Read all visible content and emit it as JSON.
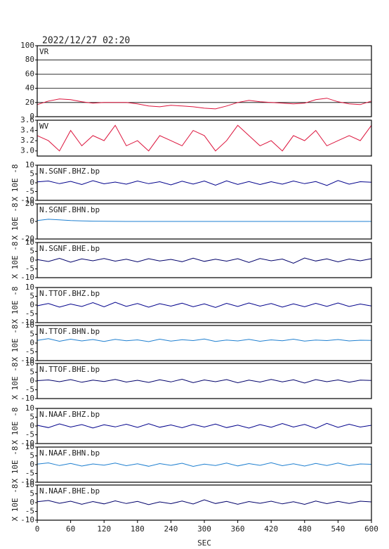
{
  "chart_data": [
    {
      "type": "line",
      "title": "2022/12/27 02:20",
      "x": [
        0,
        20,
        40,
        60,
        80,
        100,
        120,
        140,
        160,
        180,
        200,
        220,
        240,
        260,
        280,
        300,
        320,
        340,
        360,
        380,
        400,
        420,
        440,
        460,
        480,
        500,
        520,
        540,
        560,
        580,
        600
      ],
      "xlim": [
        0,
        600
      ],
      "ylim": [
        0,
        100
      ],
      "yticks": [
        0,
        20,
        40,
        60,
        80,
        100
      ],
      "grid": true,
      "series": [
        {
          "name": "VR",
          "color": "#dc143c",
          "values": [
            17,
            22,
            25,
            24,
            21,
            19,
            20,
            20,
            20,
            18,
            15,
            14,
            16,
            15,
            14,
            12,
            11,
            15,
            20,
            23,
            21,
            20,
            19,
            18,
            19,
            24,
            26,
            21,
            18,
            17,
            22
          ]
        }
      ]
    },
    {
      "type": "line",
      "x": [
        0,
        20,
        40,
        60,
        80,
        100,
        120,
        140,
        160,
        180,
        200,
        220,
        240,
        260,
        280,
        300,
        320,
        340,
        360,
        380,
        400,
        420,
        440,
        460,
        480,
        500,
        520,
        540,
        560,
        580,
        600
      ],
      "xlim": [
        0,
        600
      ],
      "ylim": [
        2.9,
        3.6
      ],
      "yticks": [
        {
          "value": 3,
          "label": "3.0"
        },
        3.2,
        3.4,
        3.6
      ],
      "grid": false,
      "series": [
        {
          "name": "WV",
          "color": "#dc143c",
          "values": [
            3.3,
            3.2,
            3.0,
            3.4,
            3.1,
            3.3,
            3.2,
            3.5,
            3.1,
            3.2,
            3.0,
            3.3,
            3.2,
            3.1,
            3.4,
            3.3,
            3.0,
            3.2,
            3.5,
            3.3,
            3.1,
            3.2,
            3.0,
            3.3,
            3.2,
            3.4,
            3.1,
            3.2,
            3.3,
            3.2,
            3.5
          ]
        }
      ]
    },
    {
      "type": "line",
      "ylabel": "X 10E -8",
      "x": [
        0,
        20,
        40,
        60,
        80,
        100,
        120,
        140,
        160,
        180,
        200,
        220,
        240,
        260,
        280,
        300,
        320,
        340,
        360,
        380,
        400,
        420,
        440,
        460,
        480,
        500,
        520,
        540,
        560,
        580,
        600
      ],
      "xlim": [
        0,
        600
      ],
      "ylim": [
        -10,
        10
      ],
      "yticks": [
        -10,
        -5,
        0,
        5,
        10
      ],
      "series": [
        {
          "name": "N.SGNF.BHZ.bp",
          "color": "#00008b",
          "values": [
            0.5,
            1,
            -0.5,
            0.8,
            -1,
            1.2,
            -0.6,
            0.4,
            -0.8,
            1,
            -0.5,
            0.6,
            -1.2,
            0.9,
            -0.7,
            1,
            -1.4,
            1.1,
            -0.9,
            0.7,
            -1,
            0.6,
            -0.8,
            1,
            -0.5,
            0.7,
            -1.5,
            1.3,
            -0.8,
            0.6,
            0.3
          ]
        }
      ]
    },
    {
      "type": "line",
      "ylabel": "X 10E -8",
      "x": [
        0,
        20,
        40,
        60,
        80,
        100,
        120,
        140,
        160,
        180,
        200,
        220,
        240,
        260,
        280,
        300,
        320,
        340,
        360,
        380,
        400,
        420,
        440,
        460,
        480,
        500,
        520,
        540,
        560,
        580,
        600
      ],
      "xlim": [
        0,
        600
      ],
      "ylim": [
        -20,
        20
      ],
      "yticks": [
        -20,
        0,
        20
      ],
      "series": [
        {
          "name": "N.SGNF.BHN.bp",
          "color": "#1e7fd0",
          "values": [
            1,
            2.5,
            1.8,
            1,
            0.6,
            0.3,
            0.2,
            0.1,
            0,
            0,
            0,
            0,
            0,
            0,
            0,
            0,
            0,
            0,
            0,
            0,
            0,
            0,
            0,
            0,
            0,
            0,
            0,
            0,
            0,
            0,
            0
          ]
        }
      ]
    },
    {
      "type": "line",
      "ylabel": "X 10E -8",
      "x": [
        0,
        20,
        40,
        60,
        80,
        100,
        120,
        140,
        160,
        180,
        200,
        220,
        240,
        260,
        280,
        300,
        320,
        340,
        360,
        380,
        400,
        420,
        440,
        460,
        480,
        500,
        520,
        540,
        560,
        580,
        600
      ],
      "xlim": [
        0,
        600
      ],
      "ylim": [
        -10,
        10
      ],
      "yticks": [
        -10,
        -5,
        0,
        5,
        10
      ],
      "series": [
        {
          "name": "N.SGNF.BHE.bp",
          "color": "#00006a",
          "values": [
            0.3,
            -0.8,
            1,
            -1.2,
            0.7,
            -0.4,
            0.9,
            -0.6,
            0.5,
            -1,
            0.8,
            -0.5,
            0.4,
            -0.9,
            1.1,
            -0.7,
            0.5,
            -0.6,
            0.8,
            -1.3,
            0.9,
            -0.4,
            0.6,
            -1.8,
            1.2,
            -0.5,
            0.7,
            -1,
            0.6,
            -0.4,
            0.8
          ]
        }
      ]
    },
    {
      "type": "line",
      "ylabel": "X 10E -8",
      "x": [
        0,
        20,
        40,
        60,
        80,
        100,
        120,
        140,
        160,
        180,
        200,
        220,
        240,
        260,
        280,
        300,
        320,
        340,
        360,
        380,
        400,
        420,
        440,
        460,
        480,
        500,
        520,
        540,
        560,
        580,
        600
      ],
      "xlim": [
        0,
        600
      ],
      "ylim": [
        -10,
        10
      ],
      "yticks": [
        -10,
        -5,
        0,
        5,
        10
      ],
      "series": [
        {
          "name": "N.TTOF.BHZ.bp",
          "color": "#00008b",
          "values": [
            -0.4,
            0.9,
            -1.1,
            0.6,
            -0.8,
            1.4,
            -1,
            1.6,
            -0.7,
            0.9,
            -1.2,
            0.8,
            -0.6,
            1.1,
            -0.9,
            0.7,
            -1.3,
            1,
            -0.8,
            1.2,
            -0.6,
            0.9,
            -1.1,
            0.7,
            -0.9,
            1,
            -0.7,
            1.2,
            -0.8,
            0.6,
            -0.5
          ]
        }
      ]
    },
    {
      "type": "line",
      "ylabel": "X 10E -8",
      "x": [
        0,
        20,
        40,
        60,
        80,
        100,
        120,
        140,
        160,
        180,
        200,
        220,
        240,
        260,
        280,
        300,
        320,
        340,
        360,
        380,
        400,
        420,
        440,
        460,
        480,
        500,
        520,
        540,
        560,
        580,
        600
      ],
      "xlim": [
        0,
        600
      ],
      "ylim": [
        -10,
        10
      ],
      "yticks": [
        -10,
        -5,
        0,
        5,
        10
      ],
      "series": [
        {
          "name": "N.TTOF.BHN.bp",
          "color": "#1e7fd0",
          "values": [
            1.5,
            2.5,
            1,
            2.2,
            1.2,
            2,
            0.9,
            2.1,
            1.3,
            1.8,
            0.8,
            2.2,
            1.1,
            1.9,
            1.4,
            2.3,
            0.9,
            1.7,
            1.2,
            2.1,
            1,
            1.8,
            1.3,
            2.2,
            1.1,
            1.7,
            1.4,
            2,
            1.2,
            1.6,
            1.5
          ]
        }
      ]
    },
    {
      "type": "line",
      "ylabel": "X 10E -8",
      "x": [
        0,
        20,
        40,
        60,
        80,
        100,
        120,
        140,
        160,
        180,
        200,
        220,
        240,
        260,
        280,
        300,
        320,
        340,
        360,
        380,
        400,
        420,
        440,
        460,
        480,
        500,
        520,
        540,
        560,
        580,
        600
      ],
      "xlim": [
        0,
        600
      ],
      "ylim": [
        -10,
        10
      ],
      "yticks": [
        -10,
        -5,
        0,
        5,
        10
      ],
      "series": [
        {
          "name": "N.TTOF.BHE.bp",
          "color": "#00006a",
          "values": [
            0.2,
            0.6,
            -0.4,
            0.8,
            -0.7,
            0.5,
            -0.3,
            0.9,
            -0.6,
            0.4,
            -0.8,
            0.7,
            -0.5,
            1,
            -0.9,
            0.6,
            -0.4,
            0.8,
            -1,
            0.5,
            -0.6,
            0.9,
            -0.5,
            0.7,
            -1.1,
            0.8,
            -0.4,
            0.6,
            -0.7,
            0.5,
            0.3
          ]
        }
      ]
    },
    {
      "type": "line",
      "ylabel": "X 10E -8",
      "x": [
        0,
        20,
        40,
        60,
        80,
        100,
        120,
        140,
        160,
        180,
        200,
        220,
        240,
        260,
        280,
        300,
        320,
        340,
        360,
        380,
        400,
        420,
        440,
        460,
        480,
        500,
        520,
        540,
        560,
        580,
        600
      ],
      "xlim": [
        0,
        600
      ],
      "ylim": [
        -10,
        10
      ],
      "yticks": [
        -10,
        -5,
        0,
        5,
        10
      ],
      "series": [
        {
          "name": "N.NAAF.BHZ.bp",
          "color": "#00008b",
          "values": [
            0.4,
            -0.9,
            1.2,
            -0.6,
            0.8,
            -1.1,
            0.7,
            -0.5,
            1,
            -0.8,
            1.3,
            -0.7,
            0.6,
            -1,
            0.9,
            -0.6,
            1.1,
            -0.9,
            0.5,
            -1.2,
            0.8,
            -0.7,
            1.4,
            -0.6,
            0.9,
            -1.3,
            1.5,
            -0.8,
            1,
            -0.6,
            0.4
          ]
        }
      ]
    },
    {
      "type": "line",
      "ylabel": "X 10E -8",
      "x": [
        0,
        20,
        40,
        60,
        80,
        100,
        120,
        140,
        160,
        180,
        200,
        220,
        240,
        260,
        280,
        300,
        320,
        340,
        360,
        380,
        400,
        420,
        440,
        460,
        480,
        500,
        520,
        540,
        560,
        580,
        600
      ],
      "xlim": [
        0,
        600
      ],
      "ylim": [
        -10,
        10
      ],
      "yticks": [
        -10,
        -5,
        0,
        5,
        10
      ],
      "series": [
        {
          "name": "N.NAAF.BHN.bp",
          "color": "#1e7fd0",
          "values": [
            0.3,
            1,
            -0.5,
            0.7,
            -0.8,
            0.4,
            -0.3,
            0.9,
            -0.6,
            0.5,
            -0.9,
            0.6,
            -0.4,
            0.8,
            -1,
            0.3,
            -0.5,
            0.9,
            -0.7,
            0.6,
            -0.4,
            1.1,
            -0.6,
            0.5,
            -0.8,
            0.7,
            -0.5,
            0.9,
            -0.6,
            0.4,
            0.2
          ]
        }
      ]
    },
    {
      "type": "line",
      "ylabel": "X 10E -8",
      "xlabel": "SEC",
      "x": [
        0,
        20,
        40,
        60,
        80,
        100,
        120,
        140,
        160,
        180,
        200,
        220,
        240,
        260,
        280,
        300,
        320,
        340,
        360,
        380,
        400,
        420,
        440,
        460,
        480,
        500,
        520,
        540,
        560,
        580,
        600
      ],
      "xlim": [
        0,
        600
      ],
      "ylim": [
        -10,
        10
      ],
      "yticks": [
        -10,
        -5,
        0,
        5,
        10
      ],
      "xticks": [
        0,
        60,
        120,
        180,
        240,
        300,
        360,
        420,
        480,
        540,
        600
      ],
      "series": [
        {
          "name": "N.NAAF.BHE.bp",
          "color": "#00006a",
          "values": [
            0.5,
            1.2,
            -0.4,
            0.8,
            -0.9,
            0.6,
            -0.7,
            1,
            -0.5,
            0.7,
            -1.1,
            0.4,
            -0.6,
            0.9,
            -0.8,
            1.6,
            -0.5,
            0.7,
            -0.9,
            0.6,
            -0.4,
            0.8,
            -0.7,
            0.5,
            -1,
            0.9,
            -0.6,
            0.7,
            -0.5,
            0.8,
            0.4
          ]
        }
      ]
    }
  ]
}
